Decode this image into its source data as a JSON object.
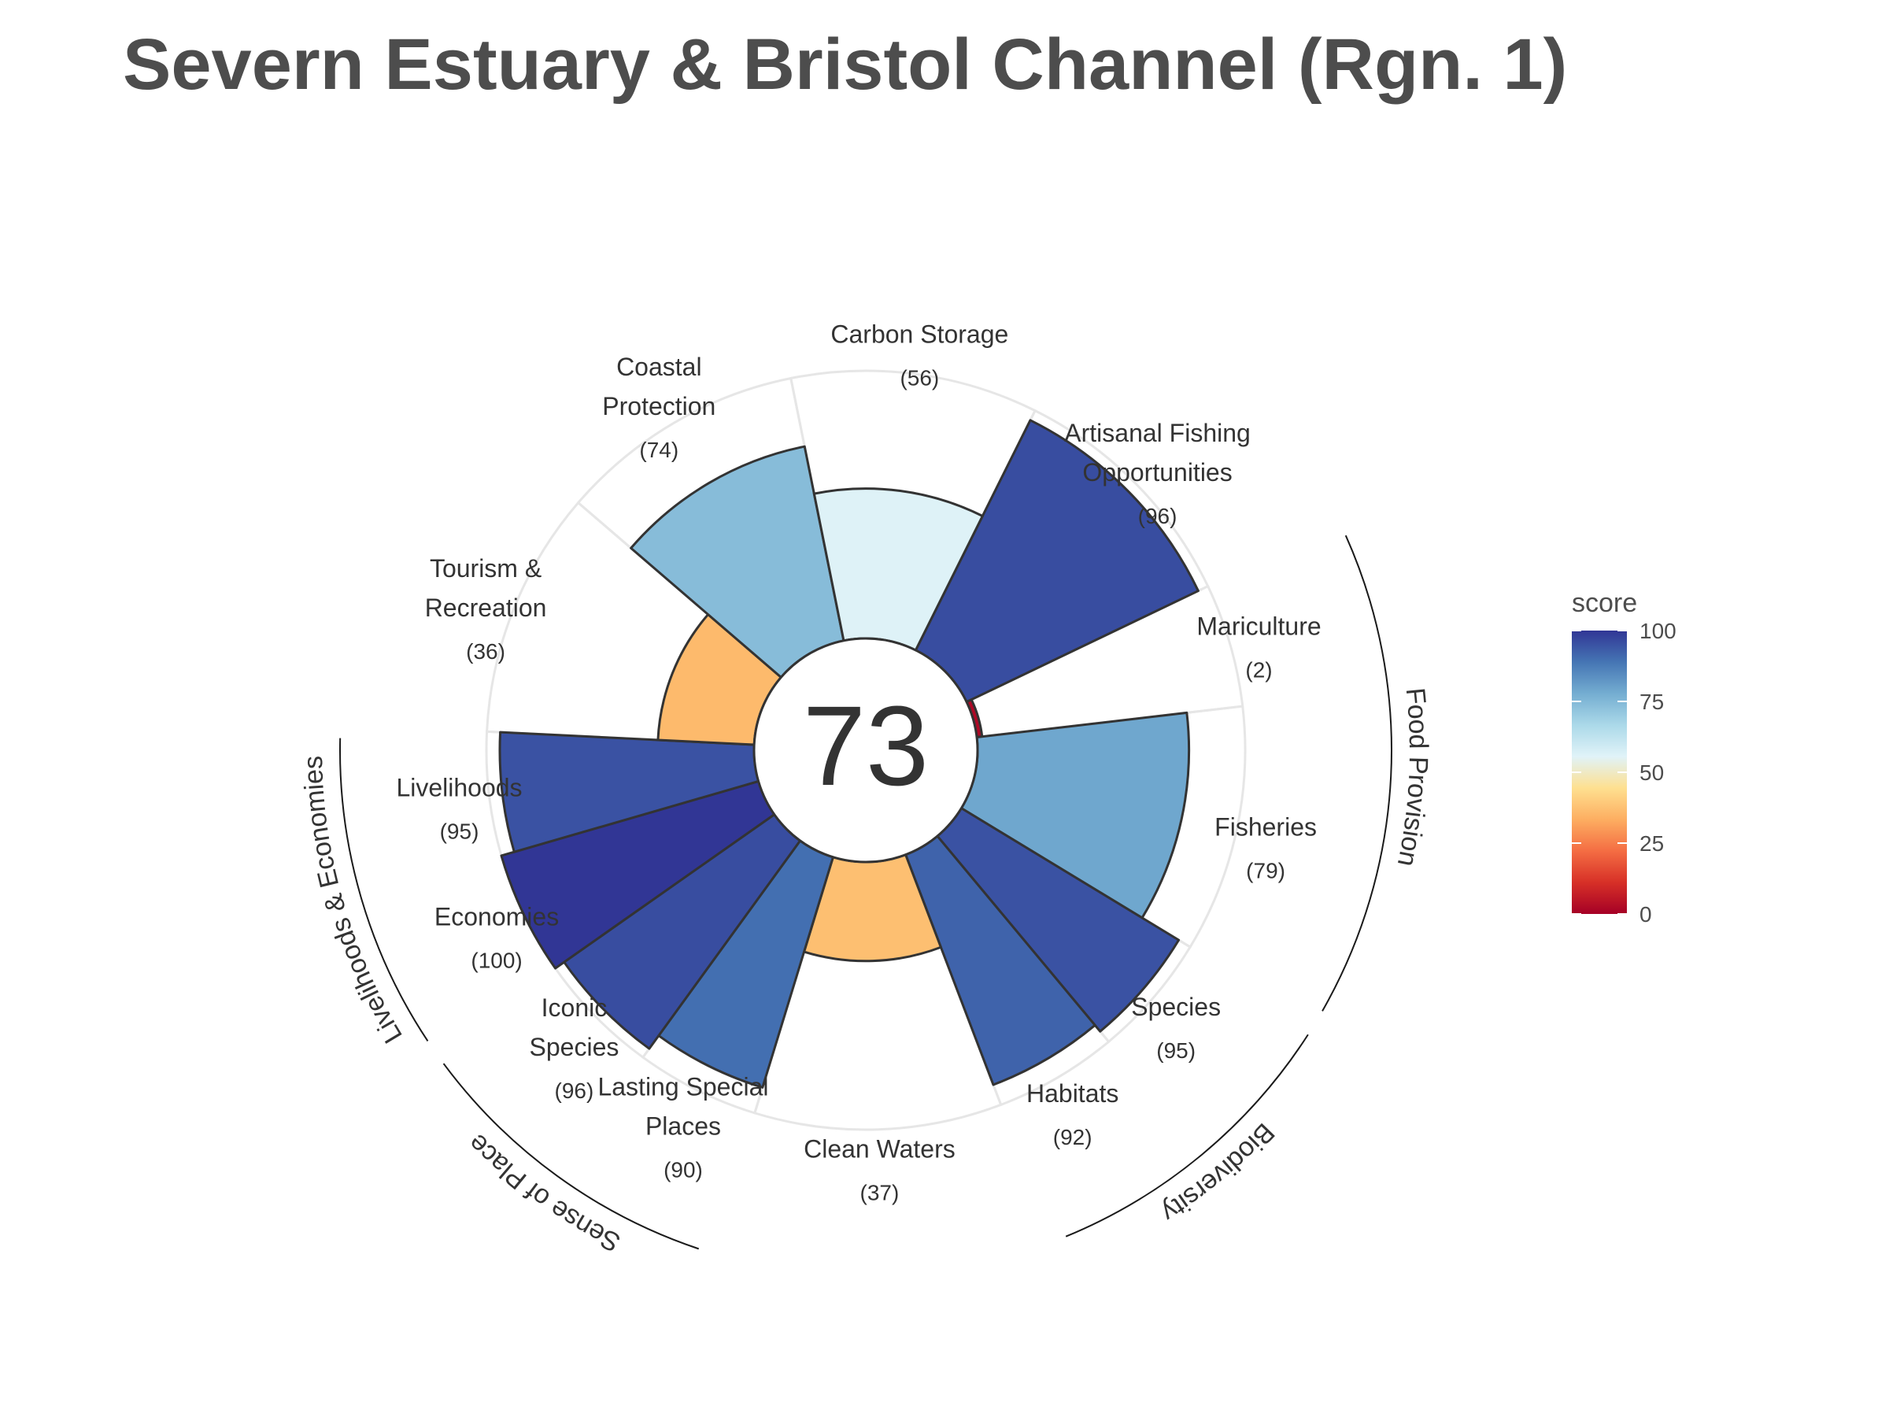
{
  "chart_data": {
    "type": "flower",
    "title": "Severn Estuary & Bristol Channel (Rgn. 1)",
    "center_score": "73",
    "ylim": [
      0,
      100
    ],
    "grid": false,
    "legend_position": "right",
    "petals": [
      {
        "name": "Artisanal Fishing Opportunities",
        "label_lines": [
          "Artisanal Fishing",
          "Opportunities"
        ],
        "score_label": "(96)",
        "value": 96,
        "weight": 1
      },
      {
        "name": "Mariculture",
        "label_lines": [
          "Mariculture"
        ],
        "score_label": "(2)",
        "value": 2,
        "weight": 0.5
      },
      {
        "name": "Fisheries",
        "label_lines": [
          "Fisheries"
        ],
        "score_label": "(79)",
        "value": 79,
        "weight": 1
      },
      {
        "name": "Species",
        "label_lines": [
          "Species"
        ],
        "score_label": "(95)",
        "value": 95,
        "weight": 0.5
      },
      {
        "name": "Habitats",
        "label_lines": [
          "Habitats"
        ],
        "score_label": "(92)",
        "value": 92,
        "weight": 0.5
      },
      {
        "name": "Clean Waters",
        "label_lines": [
          "Clean Waters"
        ],
        "score_label": "(37)",
        "value": 37,
        "weight": 1
      },
      {
        "name": "Lasting Special Places",
        "label_lines": [
          "Lasting Special",
          "Places"
        ],
        "score_label": "(90)",
        "value": 90,
        "weight": 0.5
      },
      {
        "name": "Iconic Species",
        "label_lines": [
          "Iconic",
          "Species"
        ],
        "score_label": "(96)",
        "value": 96,
        "weight": 0.5
      },
      {
        "name": "Economies",
        "label_lines": [
          "Economies"
        ],
        "score_label": "(100)",
        "value": 100,
        "weight": 0.5
      },
      {
        "name": "Livelihoods",
        "label_lines": [
          "Livelihoods"
        ],
        "score_label": "(95)",
        "value": 95,
        "weight": 0.5
      },
      {
        "name": "Tourism & Recreation",
        "label_lines": [
          "Tourism &",
          "Recreation"
        ],
        "score_label": "(36)",
        "value": 36,
        "weight": 1
      },
      {
        "name": "Coastal Protection",
        "label_lines": [
          "Coastal",
          "Protection"
        ],
        "score_label": "(74)",
        "value": 74,
        "weight": 1
      },
      {
        "name": "Carbon Storage",
        "label_lines": [
          "Carbon Storage"
        ],
        "score_label": "(56)",
        "value": 56,
        "weight": 1
      }
    ],
    "groups": [
      {
        "name": "Food Provision",
        "members": [
          "Mariculture",
          "Fisheries"
        ]
      },
      {
        "name": "Biodiversity",
        "members": [
          "Species",
          "Habitats"
        ]
      },
      {
        "name": "Sense of Place",
        "members": [
          "Lasting Special Places",
          "Iconic Species"
        ]
      },
      {
        "name": "Livelihoods & Economies",
        "members": [
          "Economies",
          "Livelihoods"
        ]
      }
    ],
    "legend": {
      "title": "score",
      "ticks": [
        "100",
        "75",
        "50",
        "25",
        "0"
      ],
      "tick_values": [
        100,
        75,
        50,
        25,
        0
      ]
    },
    "colors": {
      "title": "#4d4d4d",
      "label": "#333333",
      "outline": "#333333",
      "grid": "#e6e6e6",
      "scale": [
        "#a50026",
        "#d73027",
        "#f46d43",
        "#fdae61",
        "#fee090",
        "#e0f3f8",
        "#abd9e9",
        "#74add1",
        "#4575b4",
        "#313695"
      ]
    }
  }
}
